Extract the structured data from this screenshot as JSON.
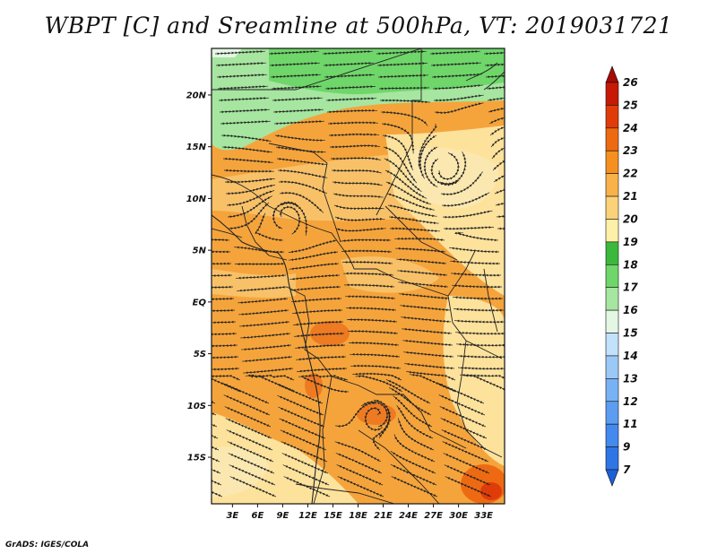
{
  "title": "WBPT [C] and Sreamline at 500hPa, VT: 2019031721",
  "credit": "GrADS: IGES/COLA",
  "map": {
    "lat_ticks": [
      {
        "lat": 20,
        "label": "20N"
      },
      {
        "lat": 15,
        "label": "15N"
      },
      {
        "lat": 10,
        "label": "10N"
      },
      {
        "lat": 5,
        "label": "5N"
      },
      {
        "lat": 0,
        "label": "EQ"
      },
      {
        "lat": -5,
        "label": "5S"
      },
      {
        "lat": -10,
        "label": "10S"
      },
      {
        "lat": -15,
        "label": "15S"
      }
    ],
    "lon_ticks": [
      {
        "lon": 3,
        "label": "3E"
      },
      {
        "lon": 6,
        "label": "6E"
      },
      {
        "lon": 9,
        "label": "9E"
      },
      {
        "lon": 12,
        "label": "12E"
      },
      {
        "lon": 15,
        "label": "15E"
      },
      {
        "lon": 18,
        "label": "18E"
      },
      {
        "lon": 21,
        "label": "21E"
      },
      {
        "lon": 24,
        "label": "24E"
      },
      {
        "lon": 27,
        "label": "27E"
      },
      {
        "lon": 30,
        "label": "30E"
      },
      {
        "lon": 33,
        "label": "33E"
      }
    ],
    "lon_range": [
      0.5,
      35.5
    ],
    "lat_range": [
      -19.5,
      24.5
    ]
  },
  "colorbar": {
    "levels": [
      "7",
      "9",
      "11",
      "12",
      "13",
      "14",
      "15",
      "16",
      "17",
      "18",
      "19",
      "20",
      "21",
      "22",
      "23",
      "24",
      "25",
      "26"
    ],
    "colors": [
      "#1f5fd6",
      "#2f75e6",
      "#4489ee",
      "#5c9df2",
      "#78b2f5",
      "#9cc8f8",
      "#c2e1fb",
      "#e4f6e4",
      "#a6e6a0",
      "#6fd66a",
      "#3cb83c",
      "#fff0a8",
      "#fbd27a",
      "#f9b24a",
      "#f59020",
      "#ee6a12",
      "#e03c0a",
      "#c61a06",
      "#a60a04"
    ]
  },
  "colors": {
    "orange": "#f5a43c",
    "light_orange": "#f8c168",
    "pale_yellow": "#fde29c",
    "dark_orange": "#ee7a22",
    "green": "#6fd66a",
    "light_green": "#a6e6a0"
  }
}
